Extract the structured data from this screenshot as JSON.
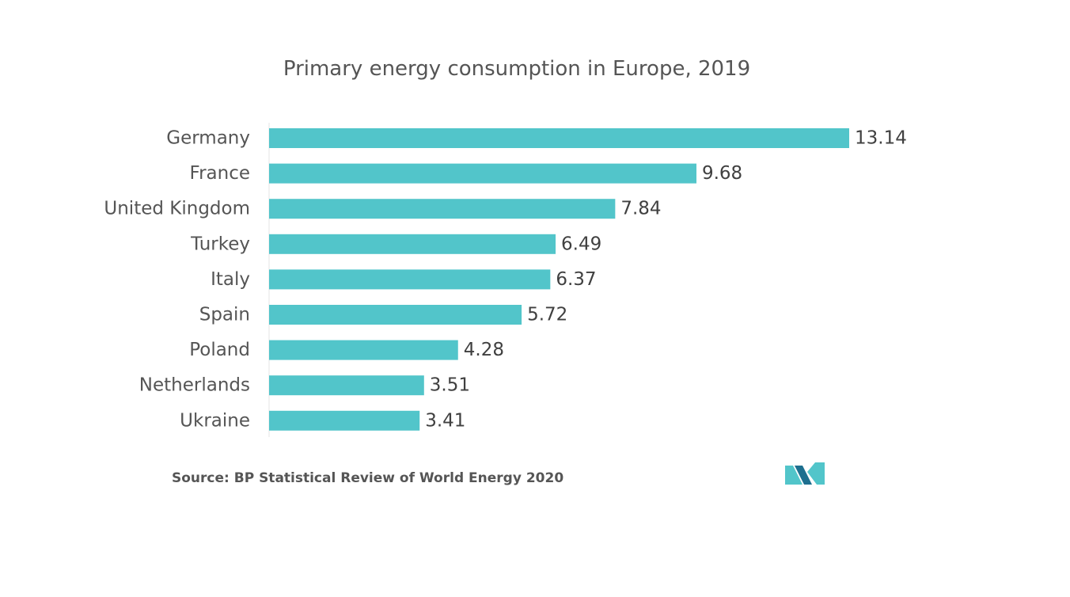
{
  "chart_data": {
    "type": "bar",
    "orientation": "horizontal",
    "title": "Primary energy consumption in Europe, 2019",
    "categories": [
      "Germany",
      "France",
      "United Kingdom",
      "Turkey",
      "Italy",
      "Spain",
      "Poland",
      "Netherlands",
      "Ukraine"
    ],
    "values": [
      13.14,
      9.68,
      7.84,
      6.49,
      6.37,
      5.72,
      4.28,
      3.51,
      3.41
    ],
    "value_labels": [
      "13.14",
      "9.68",
      "7.84",
      "6.49",
      "6.37",
      "5.72",
      "4.28",
      "3.51",
      "3.41"
    ],
    "xlabel": "",
    "ylabel": "",
    "xlim": [
      0,
      13.14
    ],
    "grid": false,
    "legend": "none",
    "bar_color": "#52c5ca"
  },
  "source": "Source: BP Statistical Review of World Energy 2020",
  "logo": {
    "icon": "mordor-intelligence-logo-icon",
    "color_dark": "#1d6f8f",
    "color_light": "#52c5ca"
  }
}
